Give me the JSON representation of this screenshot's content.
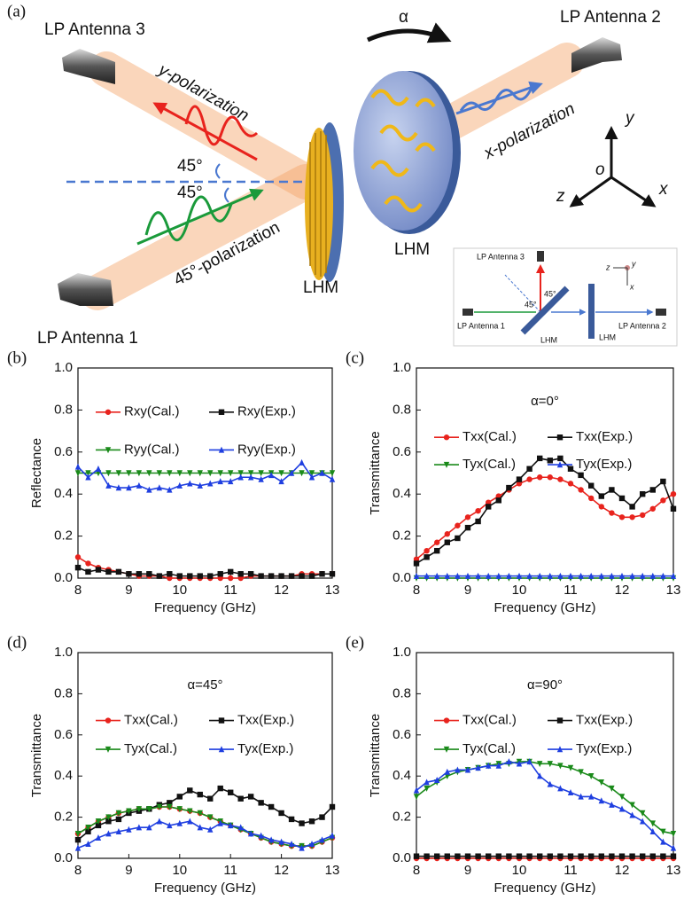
{
  "diagram": {
    "label": "(a)",
    "antenna3": "LP Antenna 3",
    "antenna2": "LP Antenna 2",
    "antenna1": "LP Antenna 1",
    "ypol": "y-polarization",
    "xpol": "x-polarization",
    "pol45": "45°-polarization",
    "angle_top": "45°",
    "angle_bottom": "45°",
    "alpha": "α",
    "lhm1": "LHM",
    "lhm2": "LHM",
    "axis_y": "y",
    "axis_o": "o",
    "axis_z": "z",
    "axis_x": "x",
    "inset": {
      "antenna3": "LP Antenna 3",
      "angle1": "45°",
      "angle2": "45°",
      "antenna1": "LP Antenna 1",
      "lhm1": "LHM",
      "lhm2": "LHM",
      "antenna2": "LP Antenna 2",
      "z": "z",
      "y": "y",
      "x": "x"
    }
  },
  "chart_data": [
    {
      "type": "line",
      "label": "(b)",
      "xlabel": "Frequency (GHz)",
      "ylabel": "Reflectance",
      "x": [
        8,
        8.2,
        8.4,
        8.6,
        8.8,
        9,
        9.2,
        9.4,
        9.6,
        9.8,
        10,
        10.2,
        10.4,
        10.6,
        10.8,
        11,
        11.2,
        11.4,
        11.6,
        11.8,
        12,
        12.2,
        12.4,
        12.6,
        12.8,
        13
      ],
      "xlim": [
        8,
        13
      ],
      "xticks": [
        8,
        9,
        10,
        11,
        12,
        13
      ],
      "ylim": [
        0,
        1
      ],
      "yticks": [
        {
          "value": 0,
          "label": "0.0"
        },
        {
          "value": 0.2,
          "label": "0.2"
        },
        {
          "value": 0.4,
          "label": "0.4"
        },
        {
          "value": 0.6,
          "label": "0.6"
        },
        {
          "value": 0.8,
          "label": "0.8"
        },
        {
          "value": 1,
          "label": "1.0"
        }
      ],
      "series": [
        {
          "name": "Rxy(Cal.)",
          "color": "#e8231d",
          "marker": "circle",
          "values": [
            0.1,
            0.07,
            0.05,
            0.04,
            0.03,
            0.02,
            0.01,
            0.01,
            0.01,
            0.0,
            0.0,
            0.0,
            0.0,
            0.0,
            0.0,
            0.0,
            0.0,
            0.01,
            0.01,
            0.01,
            0.01,
            0.01,
            0.02,
            0.02,
            0.02,
            0.02
          ]
        },
        {
          "name": "Rxy(Exp.)",
          "color": "#111111",
          "marker": "square",
          "values": [
            0.05,
            0.03,
            0.04,
            0.03,
            0.03,
            0.02,
            0.02,
            0.02,
            0.01,
            0.02,
            0.01,
            0.01,
            0.01,
            0.01,
            0.02,
            0.03,
            0.02,
            0.02,
            0.01,
            0.01,
            0.01,
            0.01,
            0.01,
            0.01,
            0.02,
            0.02
          ]
        },
        {
          "name": "Ryy(Cal.)",
          "color": "#1a8a1a",
          "marker": "down",
          "values": [
            0.5,
            0.5,
            0.5,
            0.5,
            0.5,
            0.5,
            0.5,
            0.5,
            0.5,
            0.5,
            0.5,
            0.5,
            0.5,
            0.5,
            0.5,
            0.5,
            0.5,
            0.5,
            0.5,
            0.5,
            0.5,
            0.5,
            0.5,
            0.5,
            0.5,
            0.5
          ]
        },
        {
          "name": "Ryy(Exp.)",
          "color": "#1f3fe0",
          "marker": "up",
          "values": [
            0.53,
            0.48,
            0.52,
            0.44,
            0.43,
            0.43,
            0.44,
            0.42,
            0.43,
            0.42,
            0.44,
            0.45,
            0.44,
            0.45,
            0.46,
            0.46,
            0.48,
            0.48,
            0.47,
            0.49,
            0.46,
            0.5,
            0.55,
            0.48,
            0.5,
            0.47
          ]
        }
      ]
    },
    {
      "type": "line",
      "label": "(c)",
      "annotation": "α=0°",
      "xlabel": "Frequency (GHz)",
      "ylabel": "Transmittance",
      "x": [
        8,
        8.2,
        8.4,
        8.6,
        8.8,
        9,
        9.2,
        9.4,
        9.6,
        9.8,
        10,
        10.2,
        10.4,
        10.6,
        10.8,
        11,
        11.2,
        11.4,
        11.6,
        11.8,
        12,
        12.2,
        12.4,
        12.6,
        12.8,
        13
      ],
      "xlim": [
        8,
        13
      ],
      "xticks": [
        8,
        9,
        10,
        11,
        12,
        13
      ],
      "ylim": [
        0,
        1
      ],
      "yticks": [
        {
          "value": 0,
          "label": "0.0"
        },
        {
          "value": 0.2,
          "label": "0.2"
        },
        {
          "value": 0.4,
          "label": "0.4"
        },
        {
          "value": 0.6,
          "label": "0.6"
        },
        {
          "value": 0.8,
          "label": "0.8"
        },
        {
          "value": 1,
          "label": "1.0"
        }
      ],
      "series": [
        {
          "name": "Txx(Cal.)",
          "color": "#e8231d",
          "marker": "circle",
          "values": [
            0.09,
            0.13,
            0.17,
            0.21,
            0.25,
            0.29,
            0.32,
            0.36,
            0.39,
            0.42,
            0.45,
            0.47,
            0.48,
            0.48,
            0.47,
            0.45,
            0.42,
            0.38,
            0.34,
            0.31,
            0.29,
            0.29,
            0.3,
            0.33,
            0.37,
            0.4
          ]
        },
        {
          "name": "Txx(Exp.)",
          "color": "#111111",
          "marker": "square",
          "values": [
            0.07,
            0.1,
            0.13,
            0.17,
            0.19,
            0.24,
            0.27,
            0.34,
            0.37,
            0.43,
            0.47,
            0.52,
            0.57,
            0.56,
            0.57,
            0.52,
            0.49,
            0.44,
            0.39,
            0.42,
            0.38,
            0.34,
            0.4,
            0.42,
            0.46,
            0.33
          ]
        },
        {
          "name": "Tyx(Cal.)",
          "color": "#1a8a1a",
          "marker": "down",
          "values": [
            0,
            0,
            0,
            0,
            0,
            0,
            0,
            0,
            0,
            0,
            0,
            0,
            0,
            0,
            0,
            0,
            0,
            0,
            0,
            0,
            0,
            0,
            0,
            0,
            0,
            0
          ]
        },
        {
          "name": "Tyx(Exp.)",
          "color": "#1f3fe0",
          "marker": "up",
          "values": [
            0.01,
            0.01,
            0.01,
            0.01,
            0.01,
            0.01,
            0.01,
            0.01,
            0.01,
            0.01,
            0.01,
            0.01,
            0.01,
            0.01,
            0.01,
            0.01,
            0.01,
            0.01,
            0.01,
            0.01,
            0.01,
            0.01,
            0.01,
            0.01,
            0.01,
            0.01
          ]
        }
      ]
    },
    {
      "type": "line",
      "label": "(d)",
      "annotation": "α=45°",
      "xlabel": "Frequency (GHz)",
      "ylabel": "Transmittance",
      "x": [
        8,
        8.2,
        8.4,
        8.6,
        8.8,
        9,
        9.2,
        9.4,
        9.6,
        9.8,
        10,
        10.2,
        10.4,
        10.6,
        10.8,
        11,
        11.2,
        11.4,
        11.6,
        11.8,
        12,
        12.2,
        12.4,
        12.6,
        12.8,
        13
      ],
      "xlim": [
        8,
        13
      ],
      "xticks": [
        8,
        9,
        10,
        11,
        12,
        13
      ],
      "ylim": [
        0,
        1
      ],
      "yticks": [
        {
          "value": 0,
          "label": "0.0"
        },
        {
          "value": 0.2,
          "label": "0.2"
        },
        {
          "value": 0.4,
          "label": "0.4"
        },
        {
          "value": 0.6,
          "label": "0.6"
        },
        {
          "value": 0.8,
          "label": "0.8"
        },
        {
          "value": 1,
          "label": "1.0"
        }
      ],
      "series": [
        {
          "name": "Txx(Cal.)",
          "color": "#e8231d",
          "marker": "circle",
          "values": [
            0.12,
            0.15,
            0.18,
            0.2,
            0.22,
            0.23,
            0.24,
            0.24,
            0.25,
            0.25,
            0.24,
            0.23,
            0.22,
            0.2,
            0.18,
            0.16,
            0.14,
            0.12,
            0.1,
            0.08,
            0.07,
            0.06,
            0.06,
            0.06,
            0.08,
            0.1
          ]
        },
        {
          "name": "Txx(Exp.)",
          "color": "#111111",
          "marker": "square",
          "values": [
            0.09,
            0.13,
            0.16,
            0.18,
            0.19,
            0.22,
            0.23,
            0.24,
            0.26,
            0.27,
            0.3,
            0.33,
            0.31,
            0.29,
            0.34,
            0.32,
            0.29,
            0.3,
            0.27,
            0.25,
            0.22,
            0.19,
            0.17,
            0.18,
            0.2,
            0.25
          ]
        },
        {
          "name": "Tyx(Cal.)",
          "color": "#1a8a1a",
          "marker": "down",
          "values": [
            0.12,
            0.15,
            0.18,
            0.2,
            0.22,
            0.23,
            0.24,
            0.24,
            0.25,
            0.25,
            0.24,
            0.23,
            0.22,
            0.2,
            0.18,
            0.16,
            0.14,
            0.12,
            0.1,
            0.08,
            0.07,
            0.06,
            0.06,
            0.06,
            0.08,
            0.1
          ]
        },
        {
          "name": "Tyx(Exp.)",
          "color": "#1f3fe0",
          "marker": "up",
          "values": [
            0.05,
            0.07,
            0.1,
            0.12,
            0.13,
            0.14,
            0.15,
            0.15,
            0.18,
            0.16,
            0.17,
            0.18,
            0.15,
            0.14,
            0.17,
            0.16,
            0.15,
            0.12,
            0.11,
            0.09,
            0.08,
            0.07,
            0.05,
            0.07,
            0.09,
            0.11
          ]
        }
      ]
    },
    {
      "type": "line",
      "label": "(e)",
      "annotation": "α=90°",
      "xlabel": "Frequency (GHz)",
      "ylabel": "Transmittance",
      "x": [
        8,
        8.2,
        8.4,
        8.6,
        8.8,
        9,
        9.2,
        9.4,
        9.6,
        9.8,
        10,
        10.2,
        10.4,
        10.6,
        10.8,
        11,
        11.2,
        11.4,
        11.6,
        11.8,
        12,
        12.2,
        12.4,
        12.6,
        12.8,
        13
      ],
      "xlim": [
        8,
        13
      ],
      "xticks": [
        8,
        9,
        10,
        11,
        12,
        13
      ],
      "ylim": [
        0,
        1
      ],
      "yticks": [
        {
          "value": 0,
          "label": "0.0"
        },
        {
          "value": 0.2,
          "label": "0.2"
        },
        {
          "value": 0.4,
          "label": "0.4"
        },
        {
          "value": 0.6,
          "label": "0.6"
        },
        {
          "value": 0.8,
          "label": "0.8"
        },
        {
          "value": 1,
          "label": "1.0"
        }
      ],
      "series": [
        {
          "name": "Txx(Cal.)",
          "color": "#e8231d",
          "marker": "circle",
          "values": [
            0,
            0,
            0,
            0,
            0,
            0,
            0,
            0,
            0,
            0,
            0,
            0,
            0,
            0,
            0,
            0,
            0,
            0,
            0,
            0,
            0,
            0,
            0,
            0,
            0,
            0
          ]
        },
        {
          "name": "Txx(Exp.)",
          "color": "#111111",
          "marker": "square",
          "values": [
            0.01,
            0.01,
            0.01,
            0.01,
            0.01,
            0.01,
            0.01,
            0.01,
            0.01,
            0.01,
            0.01,
            0.01,
            0.01,
            0.01,
            0.01,
            0.01,
            0.01,
            0.01,
            0.01,
            0.01,
            0.01,
            0.01,
            0.01,
            0.01,
            0.01,
            0.01
          ]
        },
        {
          "name": "Tyx(Cal.)",
          "color": "#1a8a1a",
          "marker": "down",
          "values": [
            0.3,
            0.34,
            0.37,
            0.4,
            0.42,
            0.43,
            0.44,
            0.45,
            0.46,
            0.46,
            0.47,
            0.47,
            0.46,
            0.46,
            0.45,
            0.44,
            0.42,
            0.4,
            0.37,
            0.34,
            0.3,
            0.26,
            0.22,
            0.17,
            0.13,
            0.12
          ]
        },
        {
          "name": "Tyx(Exp.)",
          "color": "#1f3fe0",
          "marker": "up",
          "values": [
            0.33,
            0.37,
            0.38,
            0.42,
            0.43,
            0.43,
            0.44,
            0.45,
            0.45,
            0.47,
            0.46,
            0.47,
            0.4,
            0.36,
            0.34,
            0.32,
            0.3,
            0.3,
            0.28,
            0.26,
            0.24,
            0.21,
            0.18,
            0.13,
            0.08,
            0.05
          ]
        }
      ]
    }
  ]
}
